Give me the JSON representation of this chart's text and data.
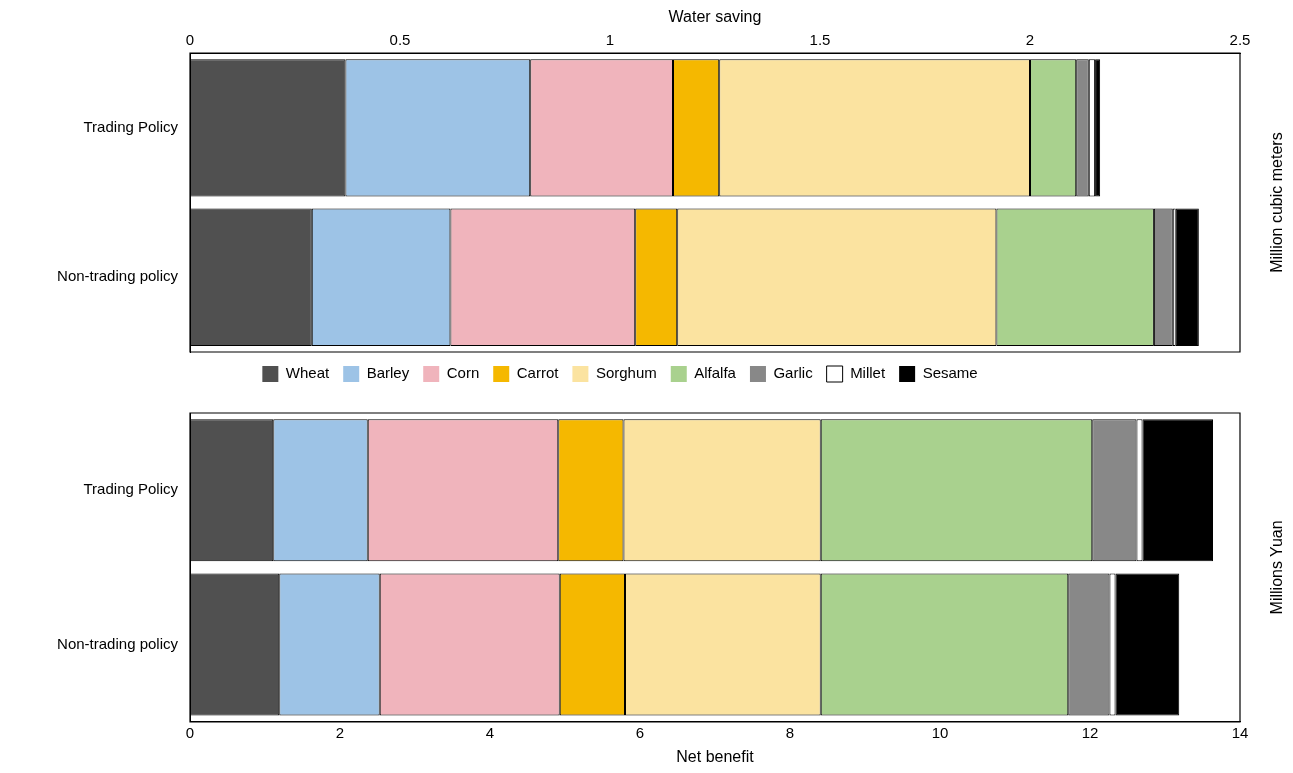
{
  "chart_data": [
    {
      "type": "bar",
      "orientation": "horizontal",
      "stacked": true,
      "xlabel": "Water saving",
      "y2label": "Million cubic meters",
      "categories": [
        "Trading Policy",
        "Non-trading policy"
      ],
      "xlim": [
        0,
        2.5
      ],
      "xticks": [
        0,
        0.5,
        1,
        1.5,
        2,
        2.5
      ],
      "grid": false,
      "legend": "bottom",
      "series": [
        {
          "name": "Wheat",
          "color": "#505050",
          "values": [
            0.37,
            0.29
          ]
        },
        {
          "name": "Barley",
          "color": "#9dc3e6",
          "values": [
            0.44,
            0.33
          ]
        },
        {
          "name": "Corn",
          "color": "#f0b4bc",
          "values": [
            0.34,
            0.44
          ]
        },
        {
          "name": "Carrot",
          "color": "#f5b800",
          "values": [
            0.11,
            0.1
          ]
        },
        {
          "name": "Sorghum",
          "color": "#fbe3a0",
          "values": [
            0.74,
            0.76
          ]
        },
        {
          "name": "Alfalfa",
          "color": "#a9d18e",
          "values": [
            0.11,
            0.375
          ]
        },
        {
          "name": "Garlic",
          "color": "#888888",
          "values": [
            0.03,
            0.045
          ]
        },
        {
          "name": "Millet",
          "color": "#ffffff",
          "values": [
            0.015,
            0.007
          ]
        },
        {
          "name": "Sesame",
          "color": "#000000",
          "values": [
            0.012,
            0.055
          ]
        }
      ]
    },
    {
      "type": "bar",
      "orientation": "horizontal",
      "stacked": true,
      "xlabel": "Net benefit",
      "y2label": "Millions Yuan",
      "categories": [
        "Trading Policy",
        "Non-trading policy"
      ],
      "xlim": [
        0,
        14
      ],
      "xticks": [
        0,
        2,
        4,
        6,
        8,
        10,
        12,
        14
      ],
      "grid": false,
      "legend": false,
      "series": [
        {
          "name": "Wheat",
          "color": "#505050",
          "values": [
            1.11,
            1.19
          ]
        },
        {
          "name": "Barley",
          "color": "#9dc3e6",
          "values": [
            1.26,
            1.34
          ]
        },
        {
          "name": "Corn",
          "color": "#f0b4bc",
          "values": [
            2.54,
            2.4
          ]
        },
        {
          "name": "Carrot",
          "color": "#f5b800",
          "values": [
            0.87,
            0.87
          ]
        },
        {
          "name": "Sorghum",
          "color": "#fbe3a0",
          "values": [
            2.63,
            2.61
          ]
        },
        {
          "name": "Alfalfa",
          "color": "#a9d18e",
          "values": [
            3.62,
            3.3
          ]
        },
        {
          "name": "Garlic",
          "color": "#888888",
          "values": [
            0.59,
            0.55
          ]
        },
        {
          "name": "Millet",
          "color": "#ffffff",
          "values": [
            0.08,
            0.08
          ]
        },
        {
          "name": "Sesame",
          "color": "#000000",
          "values": [
            0.94,
            0.85
          ]
        }
      ]
    }
  ]
}
